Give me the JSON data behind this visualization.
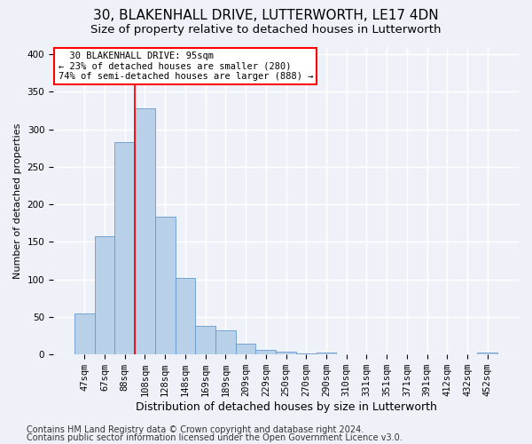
{
  "title1": "30, BLAKENHALL DRIVE, LUTTERWORTH, LE17 4DN",
  "title2": "Size of property relative to detached houses in Lutterworth",
  "xlabel": "Distribution of detached houses by size in Lutterworth",
  "ylabel": "Number of detached properties",
  "categories": [
    "47sqm",
    "67sqm",
    "88sqm",
    "108sqm",
    "128sqm",
    "148sqm",
    "169sqm",
    "189sqm",
    "209sqm",
    "229sqm",
    "250sqm",
    "270sqm",
    "290sqm",
    "310sqm",
    "331sqm",
    "351sqm",
    "371sqm",
    "391sqm",
    "412sqm",
    "432sqm",
    "452sqm"
  ],
  "values": [
    55,
    158,
    283,
    328,
    184,
    102,
    38,
    32,
    15,
    6,
    4,
    1,
    3,
    0,
    0,
    0,
    0,
    0,
    0,
    0,
    3
  ],
  "bar_color": "#b8d0e8",
  "bar_edge_color": "#6699cc",
  "red_line_x": 2.5,
  "annotation_text": "  30 BLAKENHALL DRIVE: 95sqm  \n← 23% of detached houses are smaller (280)\n74% of semi-detached houses are larger (888) →",
  "annotation_box_color": "white",
  "annotation_box_edge": "red",
  "footer1": "Contains HM Land Registry data © Crown copyright and database right 2024.",
  "footer2": "Contains public sector information licensed under the Open Government Licence v3.0.",
  "ylim": [
    0,
    410
  ],
  "background_color": "#eef2f8",
  "plot_background": "#eef2f8",
  "grid_color": "white",
  "title1_fontsize": 11,
  "title2_fontsize": 9.5,
  "xlabel_fontsize": 9,
  "ylabel_fontsize": 8,
  "tick_fontsize": 7.5,
  "footer_fontsize": 7
}
